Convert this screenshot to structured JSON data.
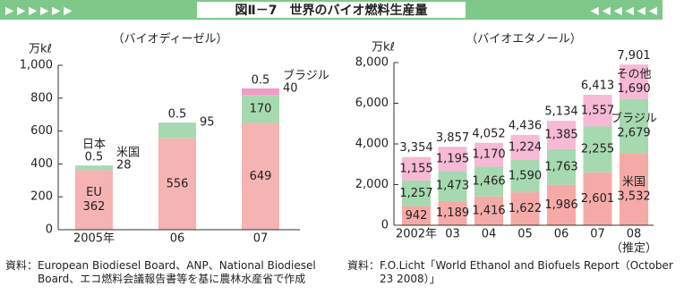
{
  "header": {
    "title": "図Ⅱ－7　世界のバイオ燃料生産量"
  },
  "chart_data": [
    {
      "type": "stacked-bar",
      "subtitle": "（バイオディーゼル）",
      "y_label": "万kℓ",
      "categories": [
        "2005年",
        "06",
        "07"
      ],
      "ylim": [
        0,
        1000
      ],
      "yticks": [
        0,
        200,
        400,
        600,
        800,
        {
          "value": 1000,
          "label": "1,000"
        }
      ],
      "series": [
        {
          "name": "EU",
          "color": "#f5b3b3",
          "values": [
            362,
            556,
            649
          ]
        },
        {
          "name": "米国",
          "color": "#a6d9b0",
          "values": [
            28,
            95,
            170
          ]
        },
        {
          "name": "ブラジル",
          "color": "#f39bc8",
          "values": [
            null,
            null,
            40
          ]
        },
        {
          "name": "日本",
          "color": "#f39bc8",
          "values": [
            0.5,
            0.5,
            0.5
          ]
        }
      ]
    },
    {
      "type": "stacked-bar",
      "subtitle": "（バイオエタノール）",
      "y_label": "万kℓ",
      "categories": [
        "2002年",
        "03",
        "04",
        "05",
        "06",
        "07",
        "08"
      ],
      "note": "（推定）",
      "ylim": [
        0,
        8000
      ],
      "yticks": [
        0,
        {
          "value": 2000,
          "label": "2,000"
        },
        {
          "value": 4000,
          "label": "4,000"
        },
        {
          "value": 6000,
          "label": "6,000"
        },
        {
          "value": 8000,
          "label": "8,000"
        }
      ],
      "series": [
        {
          "name": "米国",
          "color": "#f5aaa8",
          "values": [
            942,
            1189,
            1416,
            1622,
            1986,
            2601,
            3532
          ],
          "value_labels": [
            "942",
            "1,189",
            "1,416",
            "1,622",
            "1,986",
            "2,601",
            "3,532"
          ]
        },
        {
          "name": "ブラジル",
          "color": "#a6d9b0",
          "values": [
            1257,
            1473,
            1466,
            1590,
            1763,
            2255,
            2679
          ],
          "value_labels": [
            "1,257",
            "1,473",
            "1,466",
            "1,590",
            "1,763",
            "2,255",
            "2,679"
          ]
        },
        {
          "name": "その他",
          "color": "#f7b9d5",
          "values": [
            1155,
            1195,
            1170,
            1224,
            1385,
            1557,
            1690
          ],
          "value_labels": [
            "1,155",
            "1,195",
            "1,170",
            "1,224",
            "1,385",
            "1,557",
            "1,690"
          ]
        }
      ],
      "totals": {
        "values": [
          3354,
          3857,
          4052,
          4436,
          5134,
          6413,
          7901
        ],
        "value_labels": [
          "3,354",
          "3,857",
          "4,052",
          "4,436",
          "5,134",
          "6,413",
          "7,901"
        ]
      }
    }
  ],
  "sources": [
    "資料：European Biodiesel Board、ANP、National Biodiesel Board、エコ燃料会議報告書等を基に農林水産省で作成",
    "資料：F.O.Licht「World Ethanol and Biofuels Report（October 23 2008）」"
  ]
}
